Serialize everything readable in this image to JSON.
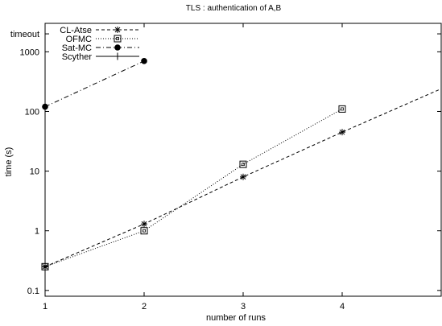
{
  "chart_data": {
    "type": "line",
    "title": "TLS : authentication of A,B",
    "xlabel": "number of runs",
    "ylabel": "time (s)",
    "y_scale": "log",
    "xlim": [
      1,
      5
    ],
    "ylim": [
      0.08,
      3000
    ],
    "x_ticks": [
      1,
      2,
      3,
      4
    ],
    "y_ticks": [
      {
        "value": 0.1,
        "label": "0.1"
      },
      {
        "value": 1,
        "label": "1"
      },
      {
        "value": 10,
        "label": "10"
      },
      {
        "value": 100,
        "label": "100"
      },
      {
        "value": 1000,
        "label": "1000"
      },
      {
        "value": 2000,
        "label": "timeout"
      }
    ],
    "legend_position": "top-left",
    "grid": false,
    "series": [
      {
        "name": "CL-Atse",
        "marker": "star",
        "line": "dashed",
        "points": [
          [
            1,
            0.25
          ],
          [
            2,
            1.3
          ],
          [
            3,
            8
          ],
          [
            4,
            45
          ],
          [
            5,
            240
          ]
        ]
      },
      {
        "name": "OFMC",
        "marker": "square",
        "line": "dotted",
        "points": [
          [
            1,
            0.25
          ],
          [
            2,
            1.0
          ],
          [
            3,
            13
          ],
          [
            4,
            110
          ]
        ]
      },
      {
        "name": "Sat-MC",
        "marker": "dot",
        "line": "dashdot",
        "points": [
          [
            1,
            120
          ],
          [
            2,
            700
          ]
        ]
      },
      {
        "name": "Scyther",
        "marker": "plus",
        "line": "solid",
        "points": [
          [
            1,
            0.25
          ]
        ]
      }
    ]
  }
}
